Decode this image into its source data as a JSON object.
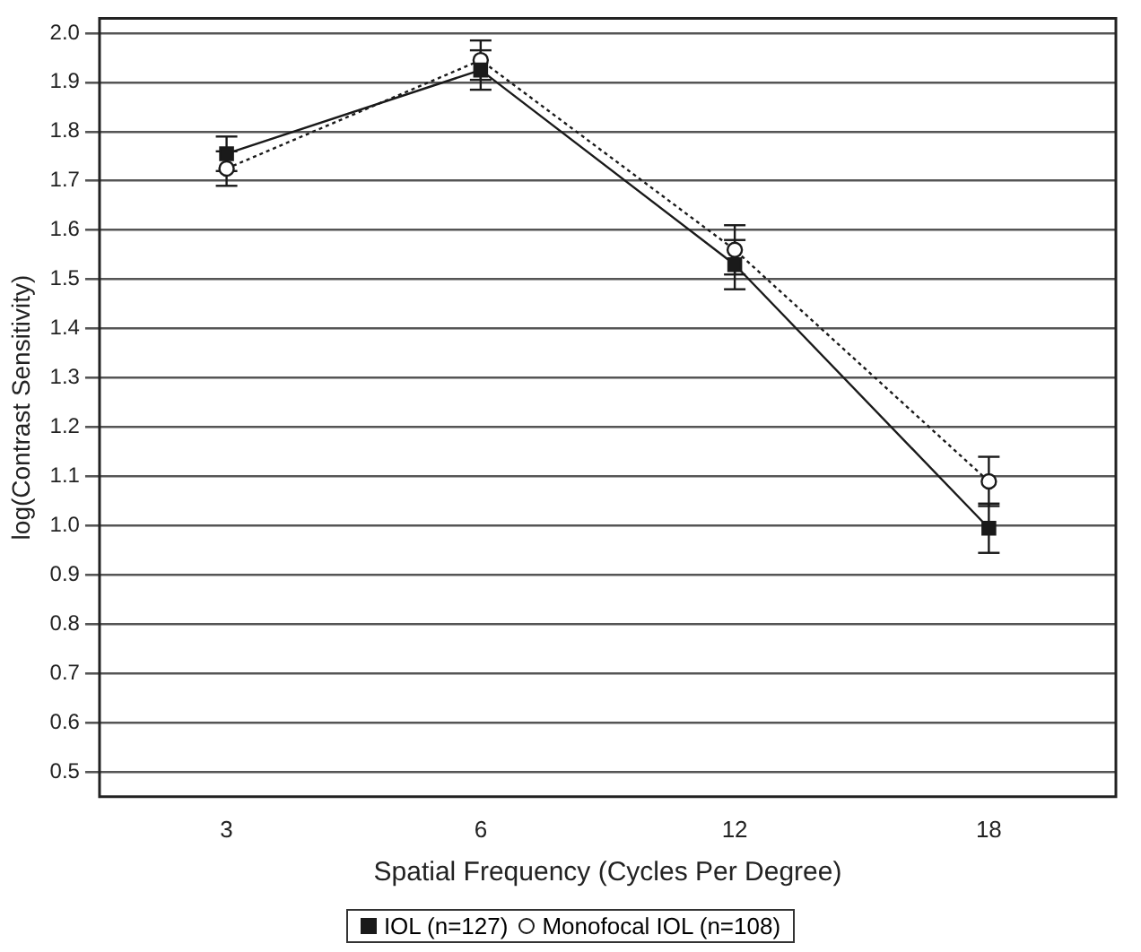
{
  "chart_data": {
    "type": "line",
    "xlabel": "Spatial Frequency (Cycles Per Degree)",
    "ylabel": "log(Contrast Sensitivity)",
    "categories": [
      "3",
      "6",
      "12",
      "18"
    ],
    "series": [
      {
        "name": "IOL (n=127)",
        "color": "#1a1a1a",
        "values": [
          1.755,
          1.925,
          1.53,
          0.995
        ],
        "errors": [
          0.035,
          0.04,
          0.05,
          0.05
        ],
        "marker": "square",
        "line_style": "solid"
      },
      {
        "name": "Monofocal IOL (n=108)",
        "color": "#1a1a1a",
        "values": [
          1.725,
          1.945,
          1.56,
          1.09
        ],
        "errors": [
          0.035,
          0.04,
          0.05,
          0.05
        ],
        "marker": "circle",
        "line_style": "dotted"
      }
    ],
    "ylim": [
      0.45,
      2.03
    ],
    "yticks": [
      0.5,
      0.6,
      0.7,
      0.8,
      0.9,
      {
        "value": 1,
        "label": "1.0"
      },
      1.1,
      1.2,
      1.3,
      1.4,
      1.5,
      1.6,
      1.7,
      1.8,
      1.9,
      {
        "value": 2,
        "label": "2.0"
      }
    ],
    "grid": "y",
    "legend": "bottom"
  }
}
